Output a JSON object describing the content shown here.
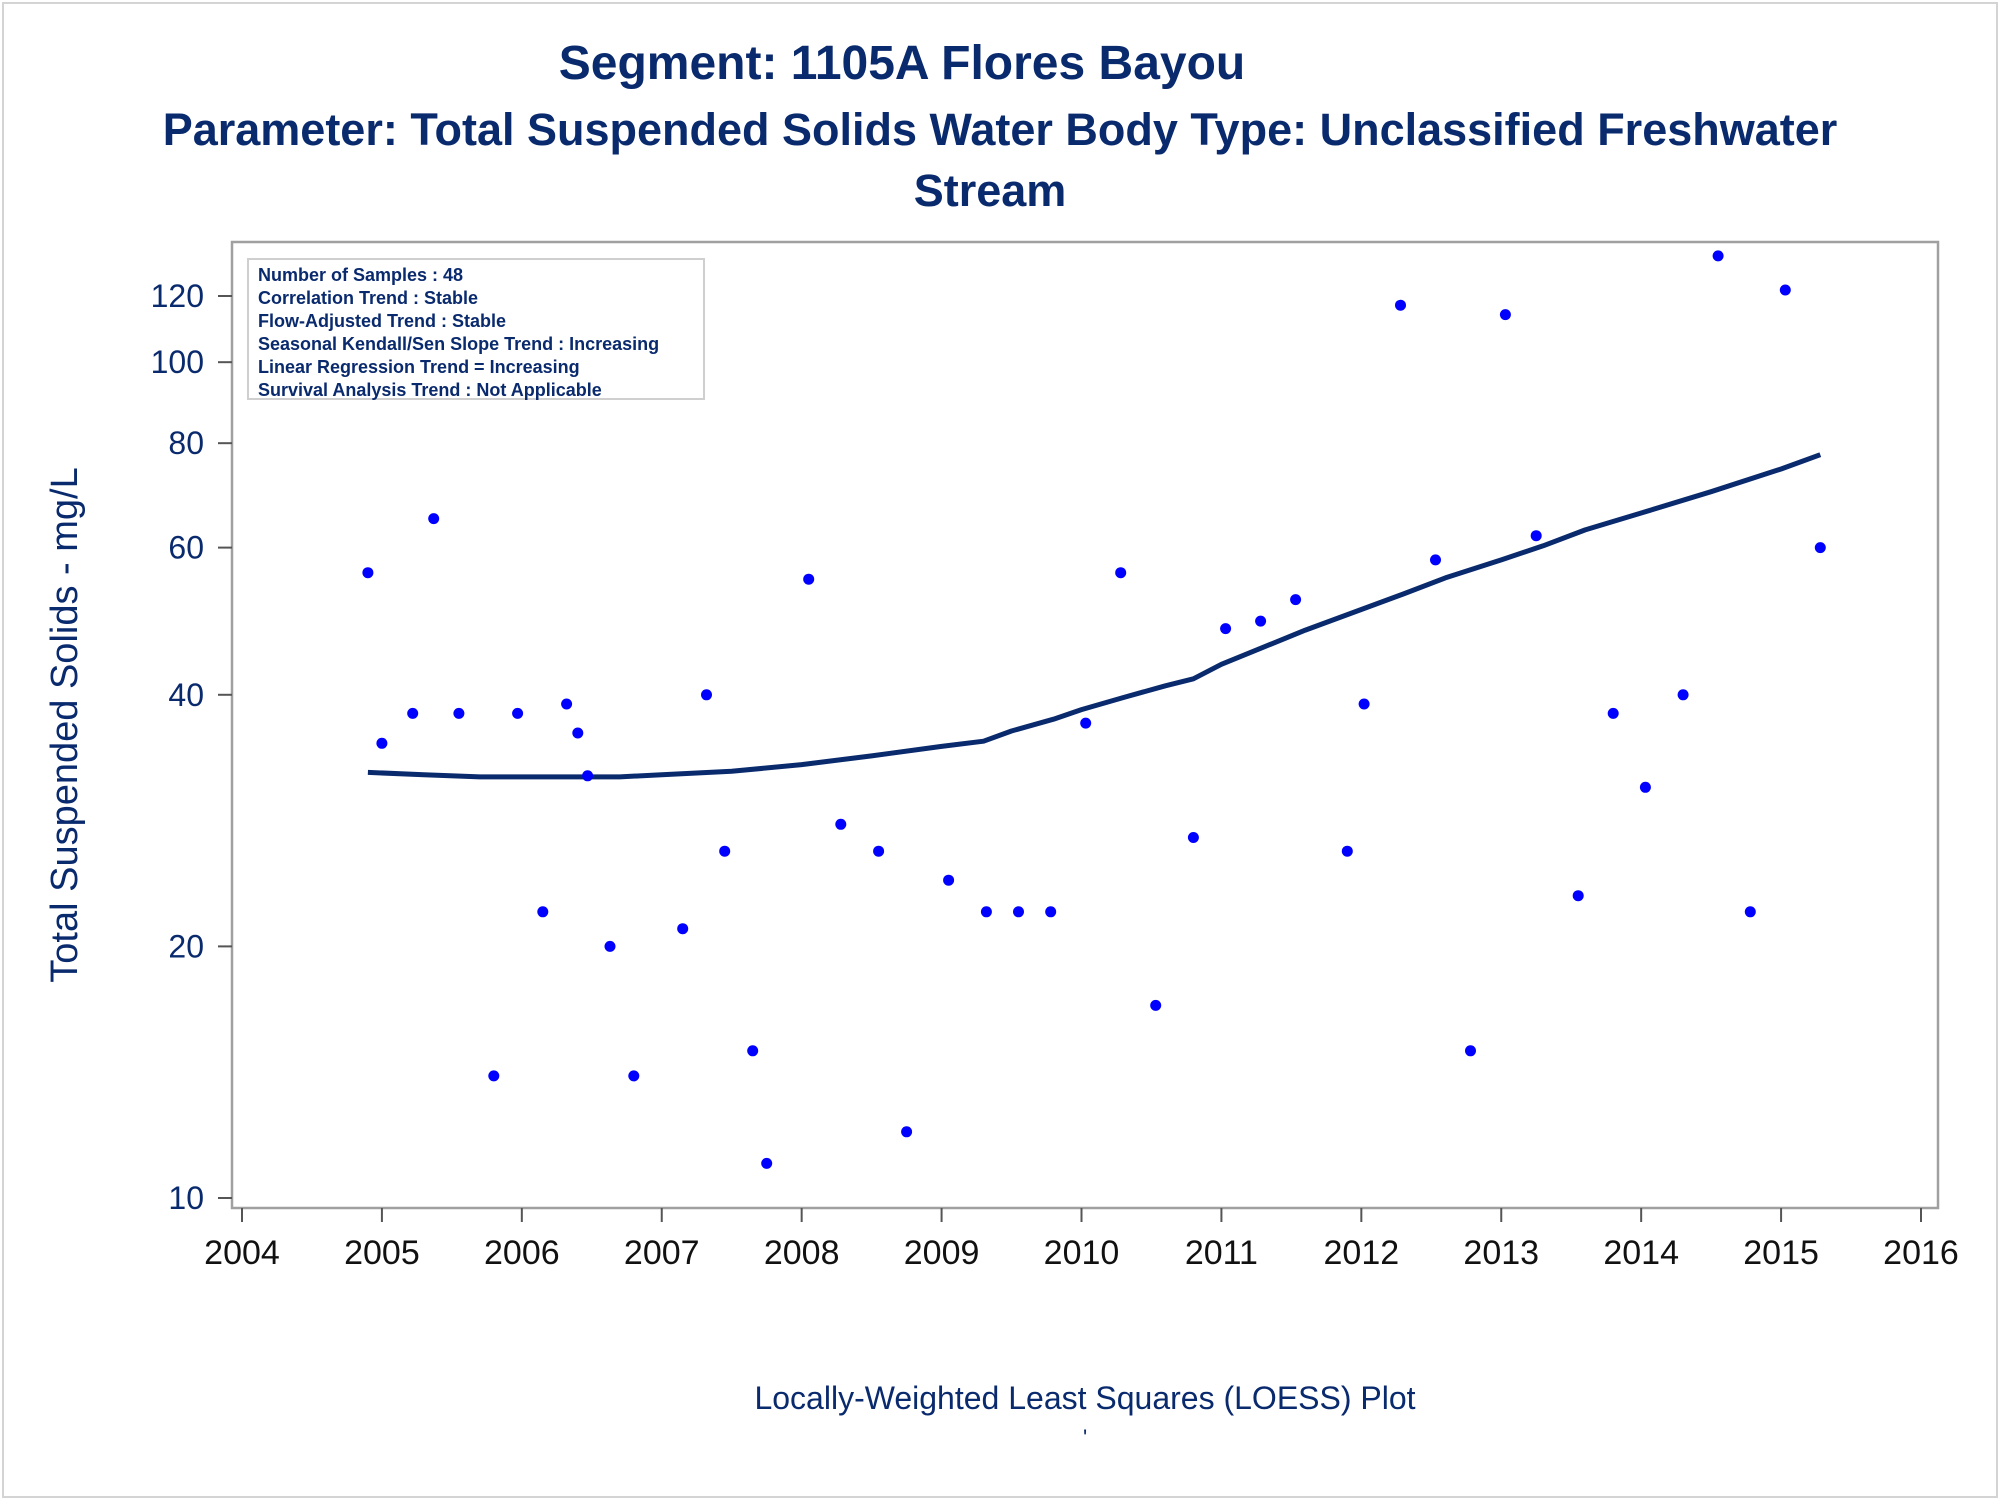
{
  "chart_data": {
    "type": "scatter",
    "title": "Segment: 1105A  Flores Bayou",
    "subtitle_line1": "Parameter: Total Suspended Solids   Water Body Type: Unclassified Freshwater",
    "subtitle_line2": "Stream",
    "ylabel": "Total Suspended Solids - mg/L",
    "xlabel": "",
    "footnote": "Locally-Weighted Least Squares (LOESS) Plot",
    "footnote_mark": "'",
    "y_scale": "log",
    "xlim": [
      2004,
      2016
    ],
    "ylim": [
      9.7,
      140
    ],
    "x_ticks": [
      2004,
      2005,
      2006,
      2007,
      2008,
      2009,
      2010,
      2011,
      2012,
      2013,
      2014,
      2015,
      2016
    ],
    "y_ticks": [
      10,
      20,
      40,
      60,
      80,
      100,
      120
    ],
    "grid": false,
    "colors": {
      "points": "#0000ff",
      "loess": "#0a2a6e",
      "text": "#0a2a6e",
      "axis": "#a0a0a0"
    },
    "stats_box": [
      "Number of Samples : 48",
      "Correlation Trend : Stable",
      "Flow-Adjusted Trend : Stable",
      "Seasonal Kendall/Sen Slope Trend : Increasing",
      "Linear Regression Trend = Increasing",
      "Survival Analysis Trend : Not Applicable"
    ],
    "series": [
      {
        "type": "scatter",
        "points": [
          [
            2004.9,
            56
          ],
          [
            2005.0,
            35
          ],
          [
            2005.22,
            38
          ],
          [
            2005.37,
            65
          ],
          [
            2005.55,
            38
          ],
          [
            2005.8,
            14
          ],
          [
            2005.97,
            38
          ],
          [
            2006.15,
            22
          ],
          [
            2006.32,
            39
          ],
          [
            2006.4,
            36
          ],
          [
            2006.47,
            32
          ],
          [
            2006.63,
            20
          ],
          [
            2006.8,
            14
          ],
          [
            2007.15,
            21
          ],
          [
            2007.32,
            40
          ],
          [
            2007.45,
            26
          ],
          [
            2007.65,
            15
          ],
          [
            2007.75,
            11
          ],
          [
            2008.05,
            55
          ],
          [
            2008.28,
            28
          ],
          [
            2008.55,
            26
          ],
          [
            2008.75,
            12
          ],
          [
            2009.05,
            24
          ],
          [
            2009.32,
            22
          ],
          [
            2009.55,
            22
          ],
          [
            2009.78,
            22
          ],
          [
            2010.03,
            37
          ],
          [
            2010.28,
            56
          ],
          [
            2010.53,
            17
          ],
          [
            2010.8,
            27
          ],
          [
            2011.03,
            48
          ],
          [
            2011.28,
            49
          ],
          [
            2011.53,
            52
          ],
          [
            2011.9,
            26
          ],
          [
            2012.02,
            39
          ],
          [
            2012.28,
            117
          ],
          [
            2012.53,
            58
          ],
          [
            2012.78,
            15
          ],
          [
            2013.03,
            114
          ],
          [
            2013.25,
            62
          ],
          [
            2013.55,
            23
          ],
          [
            2013.8,
            38
          ],
          [
            2014.03,
            31
          ],
          [
            2014.3,
            40
          ],
          [
            2014.55,
            134
          ],
          [
            2014.78,
            22
          ],
          [
            2015.03,
            122
          ],
          [
            2015.28,
            60
          ]
        ]
      },
      {
        "type": "line",
        "name": "LOESS",
        "points": [
          [
            2004.9,
            32.3
          ],
          [
            2005.3,
            32.1
          ],
          [
            2005.7,
            31.9
          ],
          [
            2006.2,
            31.9
          ],
          [
            2006.7,
            31.9
          ],
          [
            2007.0,
            32.1
          ],
          [
            2007.5,
            32.4
          ],
          [
            2008.0,
            33.0
          ],
          [
            2008.5,
            33.8
          ],
          [
            2009.0,
            34.7
          ],
          [
            2009.3,
            35.2
          ],
          [
            2009.5,
            36.2
          ],
          [
            2009.8,
            37.4
          ],
          [
            2010.0,
            38.4
          ],
          [
            2010.3,
            39.7
          ],
          [
            2010.6,
            41.0
          ],
          [
            2010.8,
            41.8
          ],
          [
            2011.0,
            43.5
          ],
          [
            2011.3,
            45.6
          ],
          [
            2011.6,
            47.8
          ],
          [
            2012.0,
            50.6
          ],
          [
            2012.3,
            52.8
          ],
          [
            2012.6,
            55.2
          ],
          [
            2013.0,
            58.0
          ],
          [
            2013.3,
            60.3
          ],
          [
            2013.6,
            63.0
          ],
          [
            2014.0,
            66.0
          ],
          [
            2014.5,
            70.0
          ],
          [
            2015.0,
            74.5
          ],
          [
            2015.28,
            77.5
          ]
        ]
      }
    ]
  }
}
